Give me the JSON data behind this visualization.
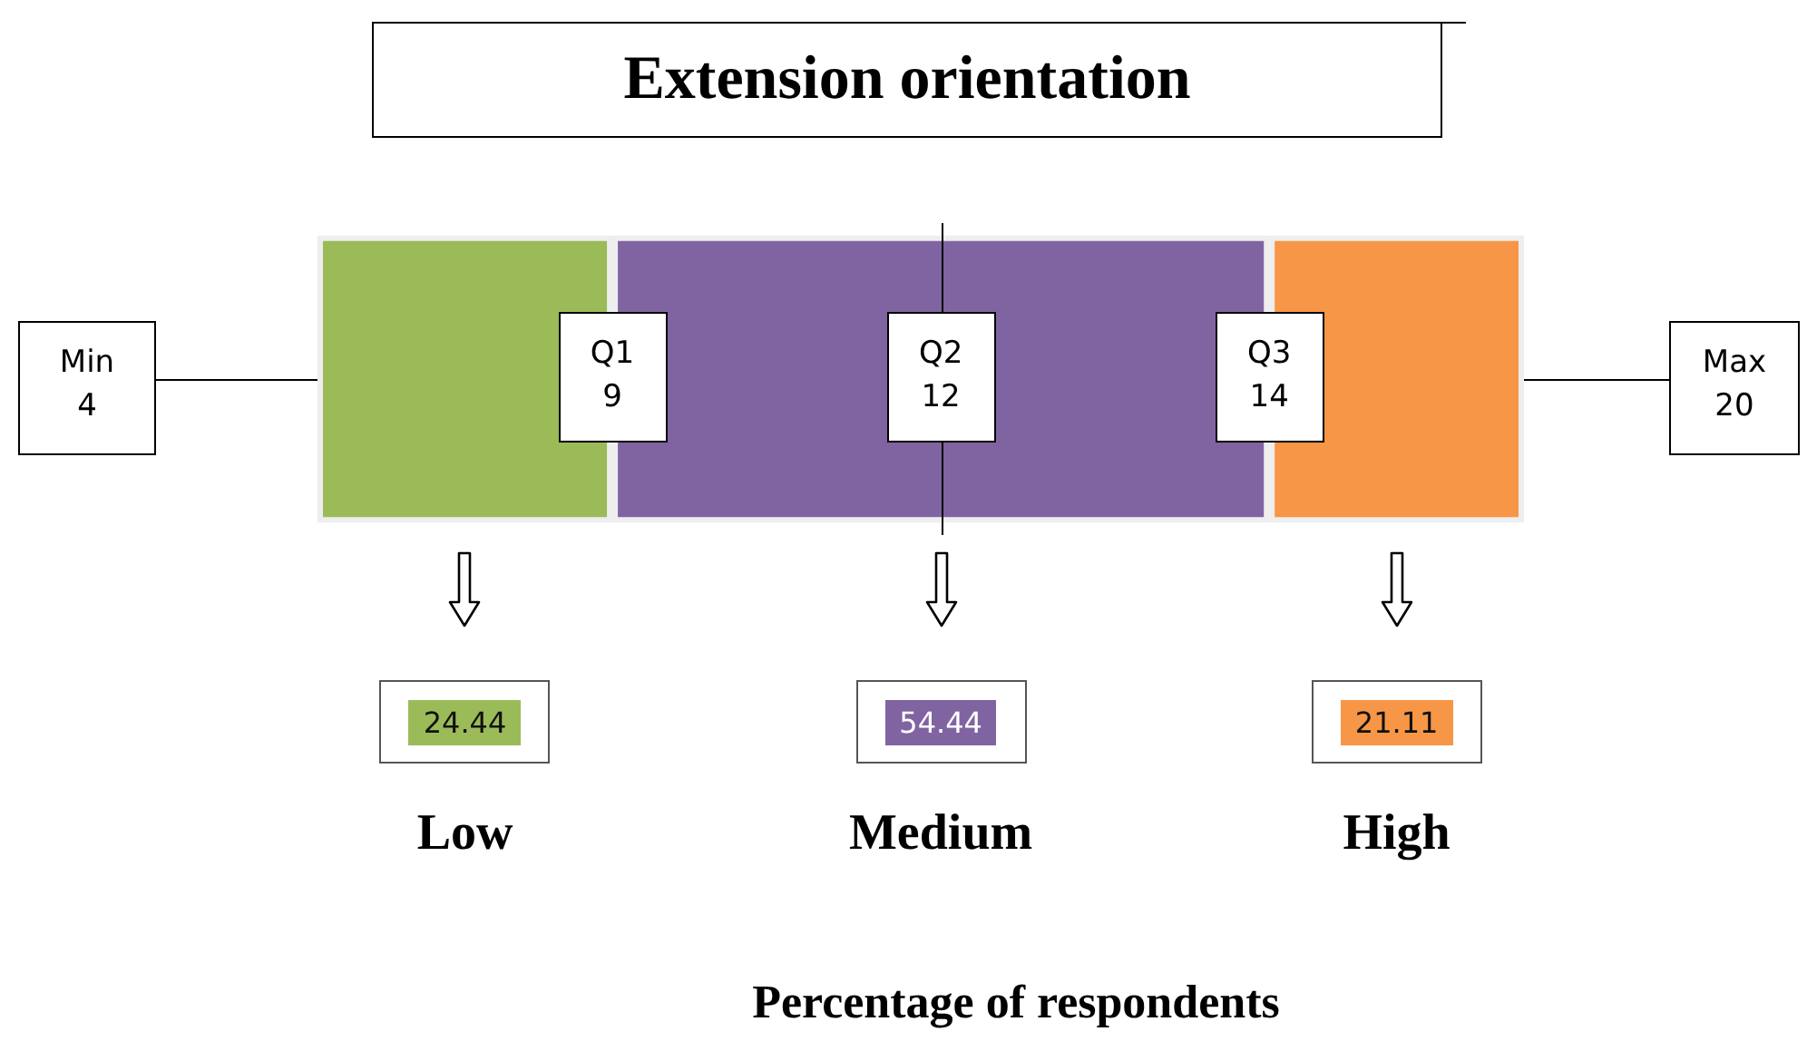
{
  "chart_data": {
    "type": "other",
    "title": "Extension orientation",
    "xlabel": "Percentage of respondents",
    "categories": [
      "Low",
      "Medium",
      "High"
    ],
    "values": [
      24.44,
      54.44,
      21.11
    ],
    "colors": [
      "#9bbb59",
      "#8064a2",
      "#f79646"
    ],
    "annotations": [
      "Min\n4",
      "Q1\n9",
      "Q2\n12",
      "Q3\n14",
      "Max\n20"
    ],
    "data_labels": true
  }
}
